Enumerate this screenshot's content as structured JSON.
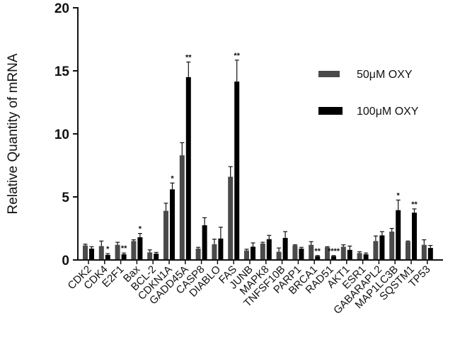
{
  "chart_data": {
    "type": "bar",
    "title": "",
    "xlabel": "",
    "ylabel": "Relative Quantity of mRNA",
    "ylim": [
      0,
      20
    ],
    "yticks": [
      0,
      5,
      10,
      15,
      20
    ],
    "categories": [
      "CDK2",
      "CDK4",
      "E2F1",
      "Bax",
      "BCL-2",
      "CDKN1A",
      "GADD45A",
      "CASP8",
      "DIABLO",
      "FAS",
      "JUNB",
      "MAPK8",
      "TNFSF10B",
      "PARP1",
      "BRCA1",
      "RAD51",
      "AKT1",
      "ESR1",
      "GABARAPL2",
      "MAP1LC3B",
      "SQSTM1",
      "TP53"
    ],
    "series": [
      {
        "name": "50μM OXY",
        "color": "#4a4a4a",
        "values": [
          1.15,
          1.1,
          1.2,
          1.5,
          0.6,
          3.9,
          8.3,
          0.9,
          1.25,
          6.6,
          0.75,
          1.3,
          0.65,
          1.15,
          1.2,
          1.0,
          1.05,
          0.55,
          1.5,
          2.25,
          1.45,
          1.2
        ],
        "errors": [
          0.1,
          0.4,
          0.2,
          0.1,
          0.2,
          0.6,
          1.0,
          0.1,
          0.4,
          0.8,
          0.1,
          0.1,
          0.3,
          0.05,
          0.25,
          0.05,
          0.15,
          0.1,
          0.4,
          0.25,
          0.05,
          0.4
        ]
      },
      {
        "name": "100μM OXY",
        "color": "#000000",
        "values": [
          0.9,
          0.4,
          0.45,
          1.8,
          0.5,
          5.6,
          14.5,
          2.75,
          1.7,
          14.15,
          1.05,
          1.65,
          1.75,
          0.9,
          0.3,
          0.3,
          0.8,
          0.45,
          1.95,
          3.95,
          3.75,
          0.95
        ],
        "errors": [
          0.15,
          0.1,
          0.1,
          0.3,
          0.1,
          0.5,
          1.2,
          0.6,
          0.9,
          1.7,
          0.3,
          0.3,
          0.5,
          0.1,
          0.05,
          0.05,
          0.3,
          0.1,
          0.3,
          0.8,
          0.3,
          0.2
        ],
        "significance": [
          "",
          "*",
          "**",
          "*",
          "",
          "*",
          "**",
          "",
          "",
          "**",
          "",
          "",
          "",
          "",
          "**",
          "****",
          "",
          "",
          "",
          "*",
          "**",
          ""
        ]
      }
    ],
    "legend_position": "top-right",
    "grid": false
  }
}
